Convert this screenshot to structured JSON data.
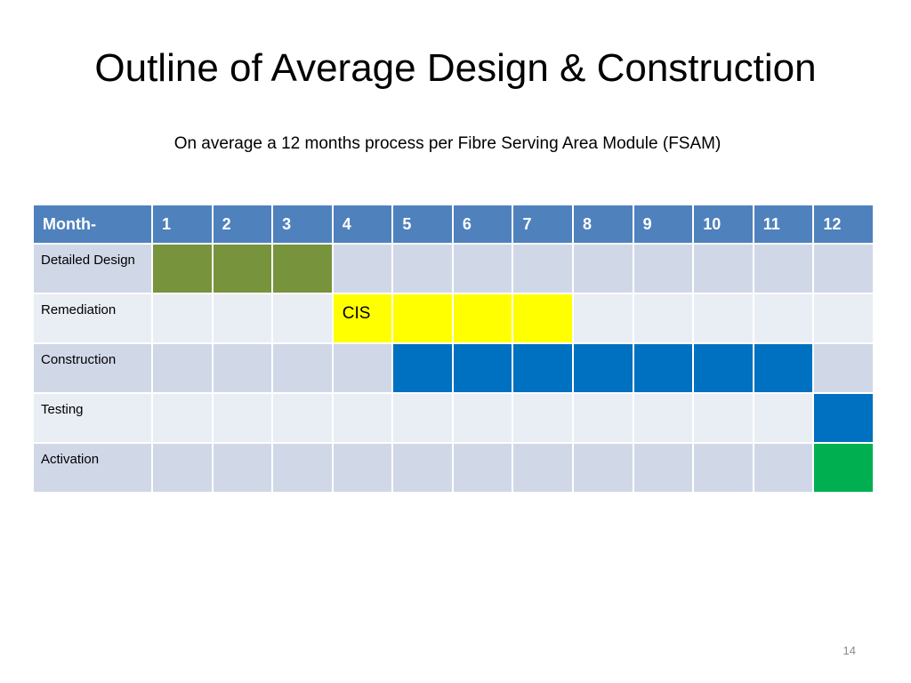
{
  "slide": {
    "title": "Outline of Average Design & Construction",
    "subtitle": "On average a 12 months process per Fibre Serving Area Module (FSAM)",
    "page_number": "14"
  },
  "colors": {
    "header": "#4f81bd",
    "row_dark": "#d0d8e8",
    "row_light": "#e9edf4",
    "detailed_design": "#77933c",
    "remediation": "#ffff00",
    "construction": "#0070c0",
    "testing": "#0070c0",
    "activation": "#00b050"
  },
  "table": {
    "header_label": "Month-",
    "months": [
      "1",
      "2",
      "3",
      "4",
      "5",
      "6",
      "7",
      "8",
      "9",
      "10",
      "11",
      "12"
    ],
    "rows": [
      {
        "label": "Detailed Design",
        "start": 1,
        "end": 3,
        "color": "#77933c",
        "bar_text": ""
      },
      {
        "label": "Remediation",
        "start": 4,
        "end": 7,
        "color": "#ffff00",
        "bar_text": "CIS"
      },
      {
        "label": "Construction",
        "start": 5,
        "end": 11,
        "color": "#0070c0",
        "bar_text": ""
      },
      {
        "label": "Testing",
        "start": 12,
        "end": 12,
        "color": "#0070c0",
        "bar_text": ""
      },
      {
        "label": "Activation",
        "start": 12,
        "end": 12,
        "color": "#00b050",
        "bar_text": ""
      }
    ]
  }
}
